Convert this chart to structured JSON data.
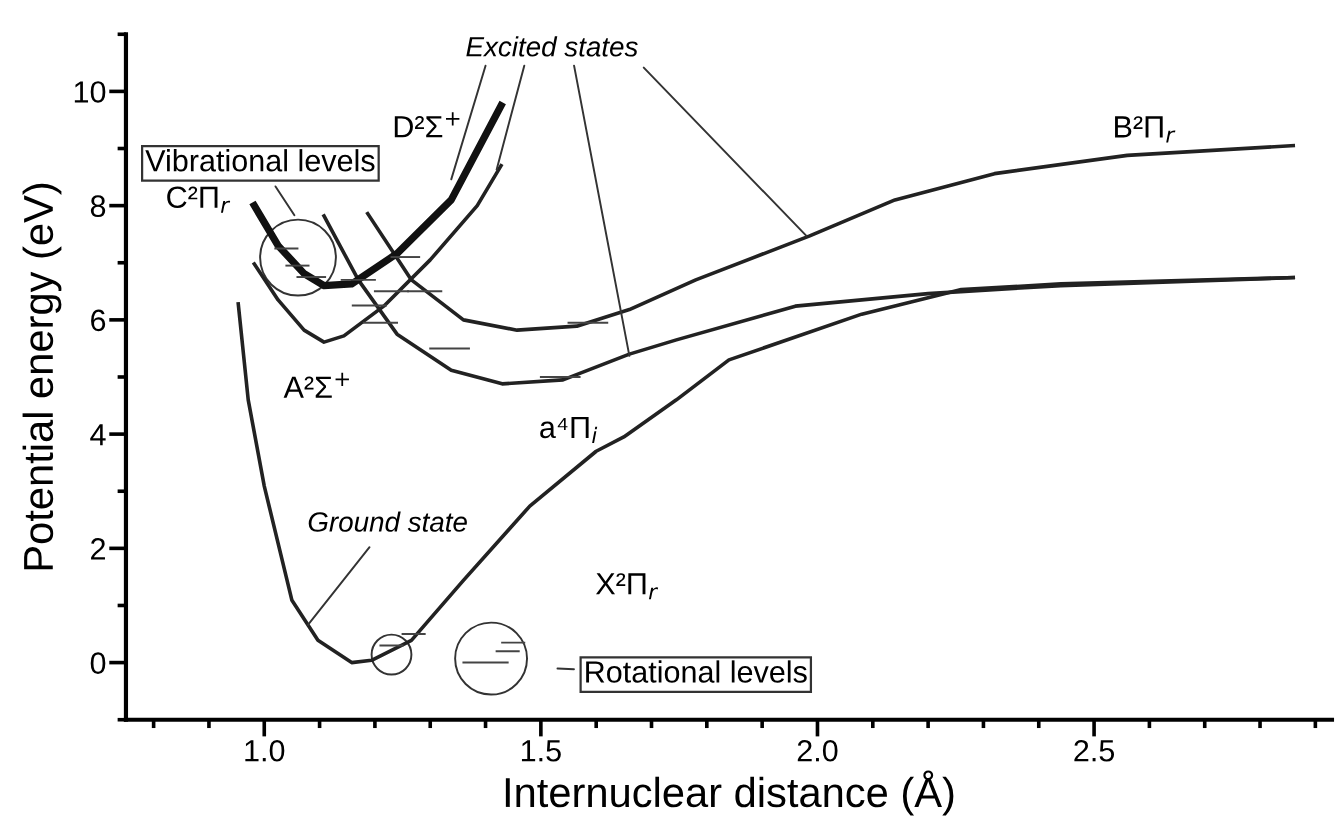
{
  "chart_data": {
    "type": "line",
    "xlabel": "Internuclear distance (Å)",
    "ylabel": "Potential energy (eV)",
    "xlim": [
      0.75,
      2.93
    ],
    "ylim": [
      -1,
      11
    ],
    "xticks": [
      {
        "value": 0.8,
        "label": null
      },
      {
        "value": 0.9,
        "label": null
      },
      {
        "value": 1,
        "label": "1.0"
      },
      {
        "value": 1.1,
        "label": null
      },
      {
        "value": 1.2,
        "label": null
      },
      {
        "value": 1.3,
        "label": null
      },
      {
        "value": 1.4,
        "label": null
      },
      1.5,
      {
        "value": 1.6,
        "label": null
      },
      {
        "value": 1.7,
        "label": null
      },
      {
        "value": 1.8,
        "label": null
      },
      {
        "value": 1.9,
        "label": null
      },
      {
        "value": 2,
        "label": "2.0"
      },
      {
        "value": 2.1,
        "label": null
      },
      {
        "value": 2.2,
        "label": null
      },
      {
        "value": 2.3,
        "label": null
      },
      {
        "value": 2.4,
        "label": null
      },
      2.5,
      {
        "value": 2.6,
        "label": null
      },
      {
        "value": 2.7,
        "label": null
      },
      {
        "value": 2.8,
        "label": null
      },
      {
        "value": 2.9,
        "label": null
      }
    ],
    "yticks": [
      {
        "value": -1,
        "label": null
      },
      0,
      {
        "value": 1,
        "label": null
      },
      2,
      {
        "value": 3,
        "label": null
      },
      4,
      {
        "value": 5,
        "label": null
      },
      6,
      {
        "value": 7,
        "label": null
      },
      8,
      {
        "value": 9,
        "label": null
      },
      10,
      {
        "value": 11,
        "label": null
      }
    ],
    "grid": false,
    "legend": false,
    "marker": "none",
    "line_style": "solid",
    "series": [
      {
        "color": "#222222",
        "x": [
          0.953,
          0.971,
          1.0,
          1.05,
          1.097,
          1.158,
          1.194,
          1.266,
          1.36,
          1.48,
          1.6,
          1.65,
          1.745,
          1.84,
          2.08,
          2.26,
          2.44,
          2.86
        ],
        "values": [
          6.28,
          4.6,
          3.09,
          1.09,
          0.39,
          0.0,
          0.04,
          0.39,
          1.44,
          2.74,
          3.7,
          3.95,
          4.6,
          5.3,
          6.1,
          6.53,
          6.63,
          6.74
        ]
      },
      {
        "color": "#222222",
        "x": [
          1.108,
          1.17,
          1.24,
          1.338,
          1.43,
          1.54,
          1.66,
          1.745,
          1.96,
          2.2,
          2.44,
          2.86
        ],
        "values": [
          7.82,
          6.7,
          5.75,
          5.12,
          4.88,
          4.95,
          5.4,
          5.65,
          6.24,
          6.46,
          6.6,
          6.74
        ]
      },
      {
        "color": "#222222",
        "x": [
          1.187,
          1.266,
          1.36,
          1.457,
          1.565,
          1.66,
          1.78,
          1.986,
          2.14,
          2.32,
          2.56,
          2.86
        ],
        "values": [
          7.86,
          6.7,
          6.0,
          5.82,
          5.89,
          6.18,
          6.7,
          7.47,
          8.1,
          8.56,
          8.88,
          9.05
        ]
      },
      {
        "color": "#111111",
        "x": [
          0.982,
          1.025,
          1.072,
          1.108,
          1.158,
          1.24,
          1.338,
          1.428
        ],
        "values": [
          8.0,
          7.3,
          6.81,
          6.6,
          6.63,
          7.16,
          8.1,
          9.75
        ]
      },
      {
        "color": "#222222",
        "x": [
          0.982,
          1.025,
          1.072,
          1.108,
          1.144,
          1.216,
          1.3,
          1.385,
          1.428
        ],
        "values": [
          6.98,
          6.35,
          5.82,
          5.61,
          5.72,
          6.24,
          7.05,
          8.0,
          8.7
        ]
      }
    ],
    "annotations": [
      "C²Π$_{r}$",
      "D²Σ$^{+}$",
      "A²Σ$^{+}$",
      "a⁴Π$_{i}$",
      "X²Π$_{r}$",
      "B²Π$_{r}$",
      {
        "text": "Excited states",
        "x": 1.98,
        "y": 7.47
      },
      {
        "text": "Ground state",
        "x": 1.079,
        "y": 0.66
      },
      "Vibrational levels",
      "Rotational levels"
    ]
  }
}
